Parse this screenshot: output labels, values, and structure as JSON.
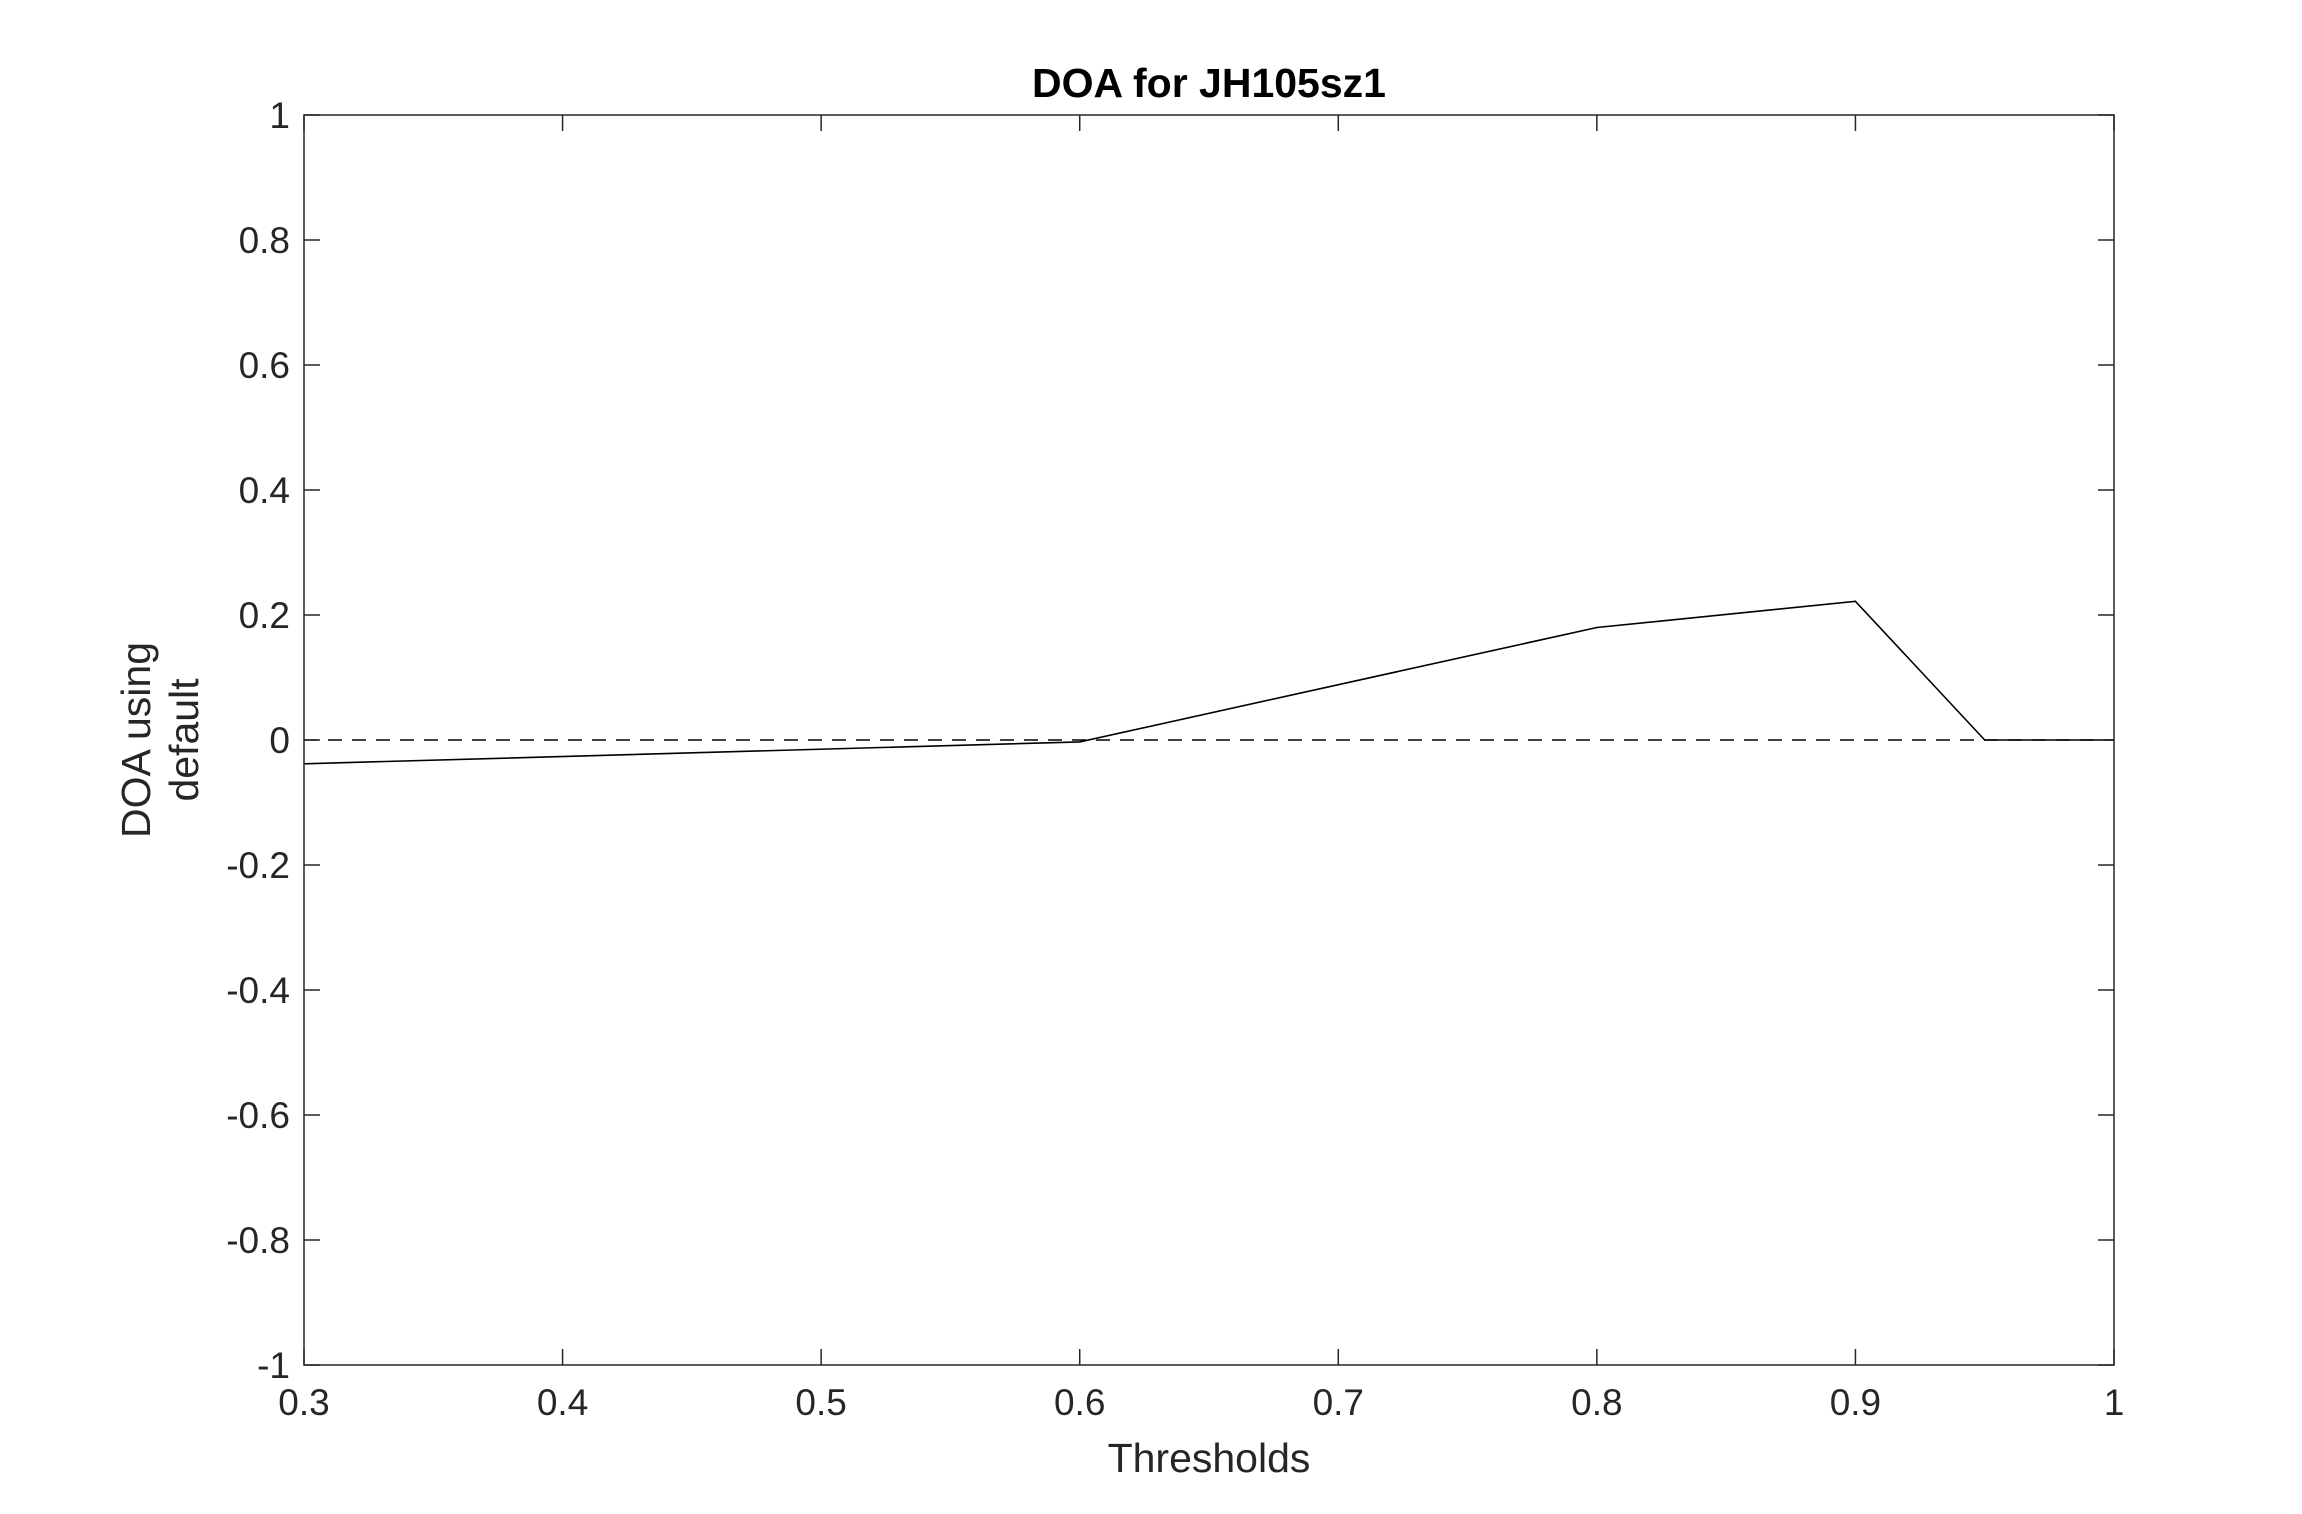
{
  "chart_data": {
    "type": "line",
    "title": "DOA for JH105sz1",
    "xlabel": "Thresholds",
    "ylabel_lines": [
      "DOA using",
      "default"
    ],
    "xlim": [
      0.3,
      1
    ],
    "ylim": [
      -1,
      1
    ],
    "xticks": [
      0.3,
      0.4,
      0.5,
      0.6,
      0.7,
      0.8,
      0.9,
      1
    ],
    "xtick_labels": [
      "0.3",
      "0.4",
      "0.5",
      "0.6",
      "0.7",
      "0.8",
      "0.9",
      "1"
    ],
    "yticks": [
      -1,
      -0.8,
      -0.6,
      -0.4,
      -0.2,
      0,
      0.2,
      0.4,
      0.6,
      0.8,
      1
    ],
    "ytick_labels": [
      "-1",
      "-0.8",
      "-0.6",
      "-0.4",
      "-0.2",
      "0",
      "0.2",
      "0.4",
      "0.6",
      "0.8",
      "1"
    ],
    "grid": false,
    "series": [
      {
        "x": [
          0.3,
          0.6,
          0.8,
          0.9,
          0.95,
          1
        ],
        "y": [
          -0.038,
          -0.003,
          0.18,
          0.222,
          0.0,
          0.0
        ],
        "color": "#000000",
        "style": "solid"
      }
    ],
    "reference_lines": [
      {
        "y": 0,
        "color": "#000000",
        "style": "dashed"
      }
    ]
  }
}
